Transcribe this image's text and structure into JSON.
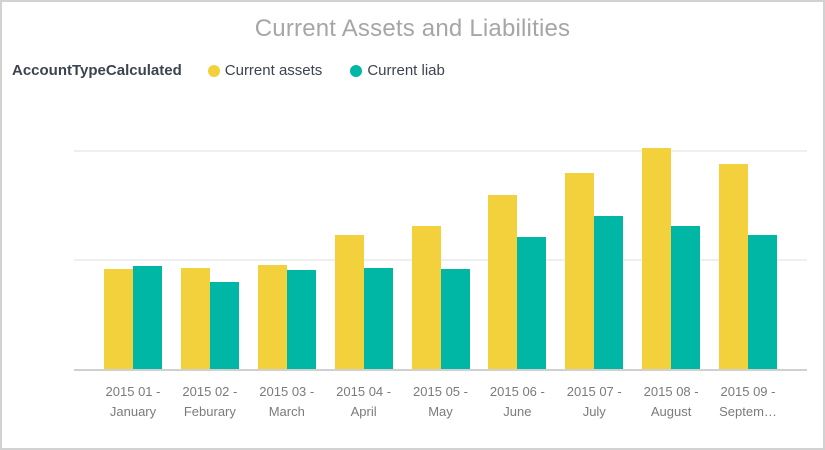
{
  "title": "Current Assets and Liabilities",
  "legend": {
    "title": "AccountTypeCalculated",
    "items": [
      {
        "label": "Current assets",
        "color": "#f2d13d"
      },
      {
        "label": "Current liab",
        "color": "#00b7a5"
      }
    ]
  },
  "chart_data": {
    "type": "bar",
    "title": "Current Assets and Liabilities",
    "categories": [
      "2015 01 - January",
      "2015 02 - Feburary",
      "2015 03 - March",
      "2015 04 - April",
      "2015 05 - May",
      "2015 06 - June",
      "2015 07 - July",
      "2015 08 - August",
      "2015 09 - Septem…"
    ],
    "x_tick_labels": [
      {
        "line1": "2015 01 -",
        "line2": "January"
      },
      {
        "line1": "2015 02 -",
        "line2": "Feburary"
      },
      {
        "line1": "2015 03 -",
        "line2": "March"
      },
      {
        "line1": "2015 04 -",
        "line2": "April"
      },
      {
        "line1": "2015 05 -",
        "line2": "May"
      },
      {
        "line1": "2015 06 -",
        "line2": "June"
      },
      {
        "line1": "2015 07 -",
        "line2": "July"
      },
      {
        "line1": "2015 08 -",
        "line2": "August"
      },
      {
        "line1": "2015 09 -",
        "line2": "Septem…"
      }
    ],
    "series": [
      {
        "name": "Current assets",
        "color": "#f2d13d",
        "values": [
          0.91,
          0.92,
          0.95,
          1.22,
          1.3,
          1.59,
          1.79,
          2.01,
          1.87
        ]
      },
      {
        "name": "Current liab",
        "color": "#00b7a5",
        "values": [
          0.94,
          0.79,
          0.9,
          0.92,
          0.91,
          1.2,
          1.39,
          1.3,
          1.22
        ]
      }
    ],
    "ylim": [
      0,
      2.26
    ],
    "gridline_values": [
      1,
      2
    ],
    "y_axis_labels_visible": false,
    "grid": true,
    "legend_position": "top-left",
    "note": "y-axis has no visible value labels; values expressed in gridline units (one gridline interval = 1)"
  },
  "colors": {
    "title_text": "#a6a6a6",
    "legend_text": "#3b4450",
    "axis_label_text": "#7b7b7b",
    "gridline": "#efefef",
    "axis_line": "#d0d0d0",
    "card_border": "#d2d2d2",
    "background": "#ffffff"
  }
}
